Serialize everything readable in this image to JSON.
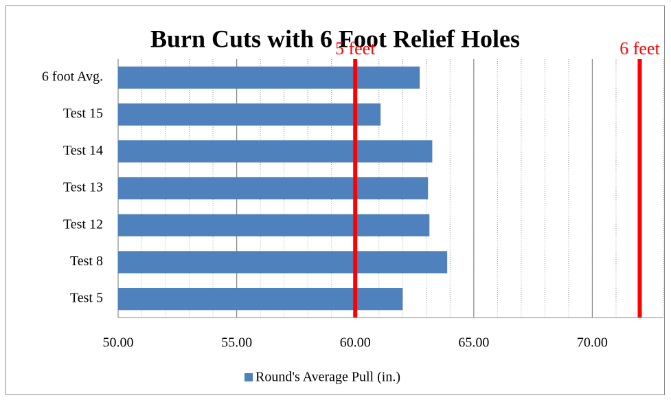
{
  "chart_data": {
    "type": "bar",
    "orientation": "horizontal",
    "title": "Burn Cuts with 6 Foot Relief Holes",
    "categories": [
      "6 foot Avg.",
      "Test 15",
      "Test 14",
      "Test 13",
      "Test 12",
      "Test 8",
      "Test 5"
    ],
    "series": [
      {
        "name": "Round's Average Pull (in.)",
        "color": "#4f81bd",
        "values": [
          62.72,
          61.07,
          63.25,
          63.07,
          63.13,
          63.88,
          62.0
        ]
      }
    ],
    "xlim": [
      50,
      73
    ],
    "xticks": [
      {
        "value": 50,
        "label": "50.00"
      },
      {
        "value": 55,
        "label": "55.00"
      },
      {
        "value": 60,
        "label": "60.00"
      },
      {
        "value": 65,
        "label": "65.00"
      },
      {
        "value": 70,
        "label": "70.00"
      }
    ],
    "grid": true,
    "minor_grid": true,
    "legend": "bottom",
    "reference_lines": [
      {
        "value": 60,
        "label": "5 feet",
        "color": "#ff0000"
      },
      {
        "value": 72,
        "label": "6 feet",
        "color": "#ff0000"
      }
    ]
  }
}
